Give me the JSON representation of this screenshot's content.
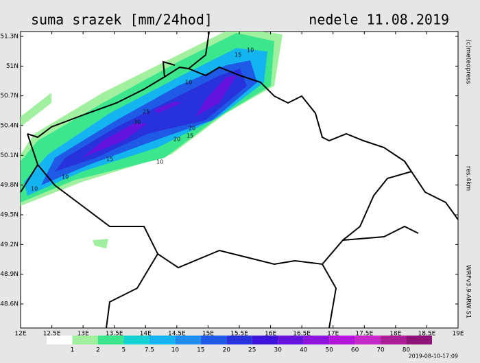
{
  "header": {
    "title": "suma srazek [mm/24hod]",
    "date": "nedele 11.08.2019"
  },
  "side_labels": {
    "copyright": "(c)meteopress",
    "resolution": "res.4km",
    "model": "WRFv3.9-ARW-S1"
  },
  "axes": {
    "lat_labels": [
      "51.3N",
      "51N",
      "50.7N",
      "50.4N",
      "50.1N",
      "49.8N",
      "49.5N",
      "49.2N",
      "48.9N",
      "48.6N"
    ],
    "lon_labels": [
      "12E",
      "12.5E",
      "13E",
      "13.5E",
      "14E",
      "14.5E",
      "15E",
      "15.5E",
      "16E",
      "16.5E",
      "17E",
      "17.5E",
      "18E",
      "18.5E",
      "19E"
    ]
  },
  "legend": {
    "labels": [
      "1",
      "2",
      "5",
      "7.5",
      "10",
      "15",
      "20",
      "25",
      "30",
      "40",
      "50",
      "60",
      "70",
      "80"
    ],
    "colors": [
      "#ffffff",
      "#a0f0a0",
      "#3ce68c",
      "#14d2d2",
      "#14b4f0",
      "#1e8cf0",
      "#1e5ae6",
      "#2832dc",
      "#3c14dc",
      "#6414dc",
      "#8c14dc",
      "#b414dc",
      "#c828c8",
      "#aa1e96",
      "#8c1478"
    ]
  },
  "contour_labels": [
    "10",
    "15",
    "20",
    "10",
    "15",
    "25",
    "20",
    "30",
    "10",
    "15",
    "10",
    "10"
  ],
  "footer": {
    "timestamp": "2019-08-10-17:09"
  }
}
